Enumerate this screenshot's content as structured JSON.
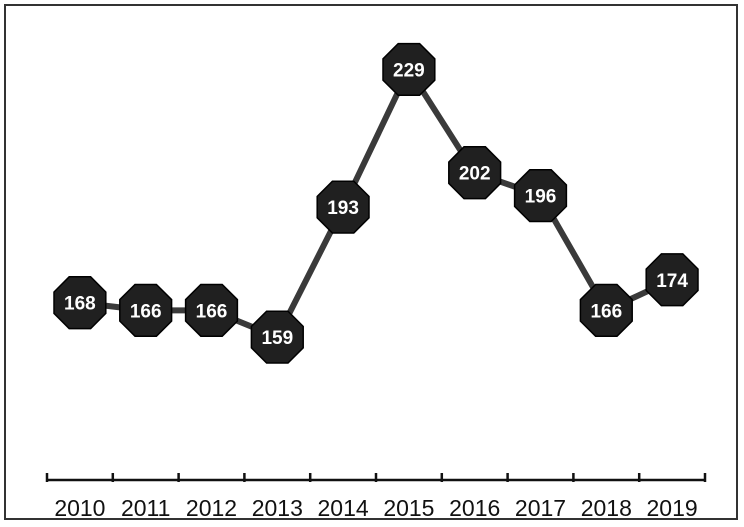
{
  "chart_data": {
    "type": "line",
    "title": "",
    "xlabel": "",
    "ylabel": "",
    "categories": [
      "2010",
      "2011",
      "2012",
      "2013",
      "2014",
      "2015",
      "2016",
      "2017",
      "2018",
      "2019"
    ],
    "series": [
      {
        "values": [
          168,
          166,
          166,
          159,
          193,
          229,
          202,
          196,
          166,
          174
        ]
      }
    ],
    "ylim": [
      130,
      232
    ],
    "grid": false,
    "legend": "none",
    "data_labels": true,
    "colors": {
      "line": "#3a3a3a",
      "marker": "#202020",
      "marker_text": "#ffffff",
      "axis": "#111111"
    }
  }
}
